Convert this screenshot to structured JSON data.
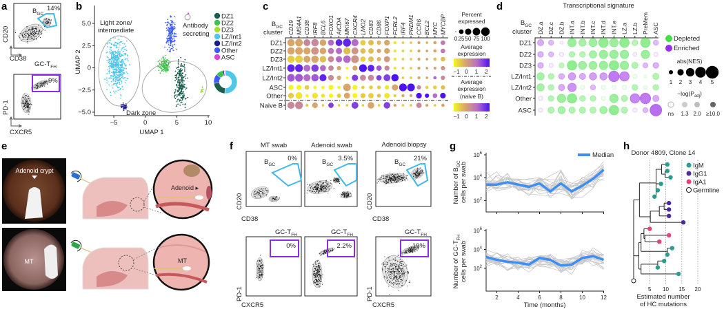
{
  "panels": {
    "a": "a",
    "b": "b",
    "c": "c",
    "d": "d",
    "e": "e",
    "f": "f",
    "g": "g",
    "h": "h"
  },
  "a": {
    "bgc_label": {
      "main": "B",
      "sub": "GC"
    },
    "bgc_pct": "14%",
    "tfh_label": {
      "main": "GC-T",
      "sub": "FH"
    },
    "tfh_pct": "9%",
    "x1": "CD38",
    "y1": "CD20",
    "x2": "CXCR5",
    "y2": "PD-1"
  },
  "colors": {
    "bgc_gate": "#3fb8ea",
    "tfh_gate": "#8b2be2",
    "median": "#3d8ef5",
    "depleted": "#3fe03f",
    "enriched": "#9a2de8",
    "IgM": "#2a9d8f",
    "IgG1": "#4b2a9a",
    "IgA1": "#e8407a"
  },
  "chart_data": [
    {
      "panel": "b",
      "type": "scatter",
      "xlabel": "UMAP 1",
      "ylabel": "UMAP 2",
      "xlim": [
        -7.5,
        10
      ],
      "ylim": [
        -5.5,
        7
      ],
      "xticks": [
        "−5",
        "0",
        "5",
        "10"
      ],
      "xtick_values": [
        -5,
        0,
        5,
        10
      ],
      "yticks": [
        "5.0",
        "2.5",
        "0",
        "−2.5",
        "−5.0"
      ],
      "ytick_values": [
        5,
        2.5,
        0,
        -2.5,
        -5
      ],
      "annotations": [
        "Light zone/",
        "intermediate",
        "Dark zone",
        "Antibody",
        "secreting"
      ],
      "legend": [
        {
          "name": "DZ1",
          "color": "#1c5e4b",
          "fraction": 0.22
        },
        {
          "name": "DZ2",
          "color": "#3ec24b",
          "fraction": 0.1
        },
        {
          "name": "DZ3",
          "color": "#a6e22b",
          "fraction": 0.01
        },
        {
          "name": "LZ/Int1",
          "color": "#4fc7e9",
          "fraction": 0.51
        },
        {
          "name": "LZ/Int2",
          "color": "#1b1b8e",
          "fraction": 0.02
        },
        {
          "name": "Other",
          "color": "#3b5bff",
          "fraction": 0.13
        },
        {
          "name": "ASC",
          "color": "#e040e0",
          "fraction": 0.01
        }
      ],
      "legend_position": "right"
    },
    {
      "panel": "c",
      "type": "heatmap",
      "subtype": "dotplot",
      "row_header": {
        "main": "B",
        "sub": "GC",
        "line2": "cluster"
      },
      "genes": [
        "CD19",
        "MS4A1",
        "CD38",
        "IRF8",
        "BCL6",
        "FOXO1",
        "AICDA",
        "MKI67",
        "CXCR4",
        "LMO2",
        "CD83",
        "CD86",
        "FOXP1",
        "FCRL2",
        "IRF4",
        "PRDM1",
        "CCR6",
        "BCL2",
        "MYC",
        "MYCBP"
      ],
      "rows": [
        {
          "name": "DZ1",
          "pct": [
            70,
            75,
            60,
            70,
            55,
            45,
            60,
            85,
            65,
            35,
            35,
            20,
            40,
            8,
            5,
            5,
            8,
            5,
            10,
            25
          ],
          "exp": [
            0,
            0,
            0.5,
            0.5,
            0,
            1,
            1.8,
            1.8,
            1,
            -0.5,
            -0.3,
            -0.2,
            0,
            -0.8,
            -0.5,
            -0.5,
            0,
            -0.3,
            0,
            0.7
          ]
        },
        {
          "name": "DZ2",
          "pct": [
            70,
            75,
            65,
            75,
            55,
            45,
            50,
            65,
            60,
            35,
            35,
            20,
            40,
            8,
            5,
            5,
            8,
            5,
            10,
            25
          ],
          "exp": [
            0,
            0,
            0,
            0.3,
            0,
            0.8,
            1,
            -0.3,
            0.3,
            -0.3,
            -0.3,
            0,
            0,
            -0.8,
            -0.5,
            -0.5,
            0,
            0,
            0,
            0.7
          ]
        },
        {
          "name": "DZ3",
          "pct": [
            70,
            75,
            60,
            70,
            55,
            45,
            50,
            75,
            80,
            35,
            35,
            20,
            45,
            8,
            5,
            5,
            8,
            5,
            10,
            25
          ],
          "exp": [
            -0.5,
            -0.5,
            0,
            0,
            -0.3,
            0.5,
            1,
            1,
            0.3,
            -0.5,
            -0.3,
            -0.2,
            0.2,
            -0.8,
            -0.5,
            -0.5,
            0,
            0,
            -0.3,
            -0.3
          ]
        },
        {
          "name": "LZ/Int1",
          "pct": [
            75,
            80,
            60,
            70,
            45,
            35,
            20,
            5,
            30,
            80,
            60,
            35,
            30,
            8,
            5,
            5,
            8,
            5,
            8,
            20
          ],
          "exp": [
            1.8,
            1.8,
            1,
            1.5,
            1,
            0.5,
            0,
            -1,
            0,
            2,
            1.8,
            1.2,
            0.5,
            -0.8,
            -0.5,
            -0.5,
            0,
            0,
            0,
            0.3
          ]
        },
        {
          "name": "LZ/Int2",
          "pct": [
            75,
            80,
            65,
            70,
            65,
            40,
            20,
            5,
            50,
            45,
            45,
            35,
            60,
            70,
            5,
            5,
            8,
            5,
            10,
            20
          ],
          "exp": [
            1.2,
            1.2,
            1,
            1.2,
            1.8,
            0.5,
            0,
            -1,
            1.5,
            0.5,
            0.5,
            1.5,
            1.5,
            2,
            -0.5,
            -0.5,
            0,
            0,
            1,
            0.5
          ]
        },
        {
          "name": "ASC",
          "pct": [
            30,
            30,
            25,
            10,
            10,
            30,
            10,
            75,
            30,
            10,
            15,
            15,
            20,
            50,
            80,
            80,
            20,
            10,
            15,
            20
          ],
          "exp": [
            -1,
            -1,
            -0.5,
            -1,
            -1,
            -1,
            -1,
            0,
            -1,
            -0.5,
            -0.5,
            -0.5,
            -0.8,
            0,
            2,
            2,
            0.5,
            -0.5,
            -0.5,
            -0.3
          ]
        },
        {
          "name": "Other",
          "pct": [
            40,
            60,
            10,
            40,
            15,
            20,
            20,
            45,
            30,
            30,
            35,
            15,
            35,
            8,
            8,
            8,
            40,
            20,
            25,
            40
          ],
          "exp": [
            -0.5,
            -0.8,
            -1,
            -0.8,
            -0.8,
            -1,
            -0.5,
            0,
            -1,
            -0.5,
            -0.5,
            -0.3,
            -0.8,
            -0.5,
            0,
            0,
            2,
            2,
            1,
            2
          ]
        },
        {
          "name": "Naive B",
          "pct": [
            65,
            80,
            8,
            40,
            5,
            35,
            5,
            5,
            60,
            5,
            55,
            5,
            55,
            8,
            5,
            5,
            35,
            8,
            5,
            10
          ],
          "exp": [
            0.5,
            0.5,
            -0.5,
            0,
            -0.5,
            1.5,
            -0.5,
            -0.5,
            1.5,
            -0.5,
            0,
            -0.5,
            1.5,
            0,
            -0.5,
            -0.5,
            0.5,
            0,
            -0.5,
            0
          ]
        }
      ],
      "legend": {
        "size_title": [
          "Percent",
          "expressed"
        ],
        "size_ticks": [
          "0",
          "25",
          "50",
          "75",
          "100"
        ],
        "size_values": [
          0,
          25,
          50,
          75,
          100
        ],
        "color_title": [
          "Average",
          "expression"
        ],
        "color_ticks": [
          "−1",
          "0",
          "1",
          "2"
        ],
        "color_title_naive": [
          "Average",
          "expression",
          "(naive B)"
        ],
        "colorscale": [
          "#f6f41f",
          "#d8a56b",
          "#b76bc9",
          "#4b12f3"
        ],
        "color_range": [
          -1,
          2
        ]
      }
    },
    {
      "panel": "d",
      "type": "heatmap",
      "subtype": "dotplot",
      "title": "Transcriptional signature",
      "row_header": {
        "main": "B",
        "sub": "GC",
        "line2": "cluster"
      },
      "columns": [
        "DZ.a",
        "DZ.c",
        "DZ.b",
        "INT.a",
        "INT.b",
        "INT.c",
        "INT.d",
        "INT.e",
        "LZ.a",
        "LZ.b",
        "PreMem",
        "ASC"
      ],
      "rows": [
        {
          "name": "DZ1",
          "nes": [
            2,
            1.5,
            0.5,
            -3,
            -2.5,
            -2.8,
            -3.5,
            -3,
            -3.5,
            -1.8,
            -3.5,
            1.5
          ]
        },
        {
          "name": "DZ2",
          "nes": [
            1.8,
            1.5,
            1,
            -1.8,
            -1.8,
            -2.5,
            -3,
            -3,
            -3,
            0.8,
            -3,
            1
          ]
        },
        {
          "name": "DZ3",
          "nes": [
            1.8,
            1,
            -1.5,
            -3.5,
            -2.8,
            -2.8,
            -3,
            -3.5,
            -3,
            -2,
            1.5,
            1.8
          ]
        },
        {
          "name": "LZ/Int1",
          "nes": [
            -2.5,
            -1.8,
            1.8,
            2.5,
            2,
            2.5,
            2.5,
            4,
            3.5,
            -1,
            -0.5,
            -2
          ]
        },
        {
          "name": "LZ/Int2",
          "nes": [
            -2.5,
            -1.8,
            2,
            3,
            -1,
            1.5,
            -1,
            -0.8,
            -1,
            -1.8,
            -0.8,
            -1.8
          ]
        },
        {
          "name": "Other",
          "nes": [
            1,
            -1.8,
            -3,
            -3.5,
            -1.8,
            -1.8,
            -1,
            -3,
            -2,
            3.5,
            4,
            2
          ]
        },
        {
          "name": "ASC",
          "nes": [
            1,
            -2,
            -2.5,
            -2,
            -2,
            -2,
            -2.5,
            -3.5,
            -2,
            1,
            1.5,
            4.5
          ]
        }
      ],
      "legend": {
        "depleted": "Depleted",
        "enriched": "Enriched",
        "size_title": "abs(NES)",
        "size_ticks": [
          "1",
          "2",
          "3",
          "4",
          "5"
        ],
        "size_values": [
          1,
          2,
          3,
          4,
          5
        ],
        "p_title": {
          "main": "−log(P",
          "sub": "adj",
          "end": ")"
        },
        "p_ticks": [
          "ns",
          "1.3",
          "2.0",
          "≥10.0"
        ]
      }
    },
    {
      "panel": "g",
      "type": "line",
      "xlabel": "Time (months)",
      "xlim": [
        1,
        12
      ],
      "xticks": [
        "2",
        "4",
        "6",
        "8",
        "10",
        "12"
      ],
      "xtick_values": [
        2,
        4,
        6,
        8,
        10,
        12
      ],
      "legend": "Median",
      "series": [
        {
          "name": "Median",
          "ylabel": {
            "line1": "Number of B",
            "sub": "GC",
            "line2": "cells per swab"
          },
          "y_log10": [
            3.4,
            3.4,
            3.6,
            3.4,
            3.2,
            3.5,
            2.8,
            3.5,
            2.8,
            3.3,
            3.9,
            4.7
          ],
          "ylim_log10": [
            1,
            6
          ],
          "yticks": [
            "6",
            "4",
            "2"
          ]
        },
        {
          "name": "Median",
          "ylabel": {
            "line1": "Number of GC-T",
            "sub": "FH",
            "line2": "cells per swab"
          },
          "y_log10": [
            3.2,
            2.9,
            2.7,
            2.6,
            2.4,
            3.1,
            2.9,
            2.3,
            2.4,
            3.1,
            3.3,
            2.9
          ],
          "ylim_log10": [
            -0.4,
            6
          ],
          "yticks": [
            "6",
            "4",
            "2"
          ]
        }
      ],
      "x": [
        1,
        2,
        3,
        4,
        5,
        6,
        7,
        8,
        9,
        10,
        11,
        12
      ]
    },
    {
      "panel": "h",
      "type": "scatter",
      "subtype": "phylogenetic-tree",
      "title": "Donor 4809, Clone 14",
      "xlabel": [
        "Estimated number",
        "of HC mutations"
      ],
      "xticks": [
        "5",
        "10",
        "15",
        "20"
      ],
      "xtick_values": [
        5,
        10,
        15,
        20
      ],
      "legend": [
        "IgM",
        "IgG1",
        "IgA1",
        "Germline"
      ],
      "tree": {
        "x": 0,
        "c": [
          {
            "x": 1.8,
            "c": [
              {
                "x": 7,
                "c": [
                  {
                    "x": 8.7,
                    "c": [
                      {
                        "leaf": "IgM",
                        "x": 10.5
                      },
                      {
                        "x": 9.8,
                        "c": [
                          {
                            "leaf": "IgM",
                            "x": 10.5
                          },
                          {
                            "leaf": "IgM",
                            "x": 11.5
                          }
                        ]
                      }
                    ]
                  },
                  {
                    "leaf": "IgM",
                    "x": 8.5
                  },
                  {
                    "leaf": "IgM",
                    "x": 7.5
                  },
                  {
                    "leaf": "IgM",
                    "x": 6.5
                  }
                ]
              },
              {
                "x": 5.2,
                "c": [
                  {
                    "x": 8,
                    "c": [
                      {
                        "x": 9.5,
                        "c": [
                          {
                            "leaf": "IgG1",
                            "x": 11
                          },
                          {
                            "leaf": "IgG1",
                            "x": 11
                          }
                        ]
                      },
                      {
                        "leaf": "IgG1",
                        "x": 11
                      }
                    ]
                  },
                  {
                    "leaf": "IgG1",
                    "x": 15.5
                  }
                ]
              }
            ]
          },
          {
            "x": 1.6,
            "c": [
              {
                "x": 2.3,
                "c": [
                  {
                    "x": 3.2,
                    "c": [
                      {
                        "leaf": "IgA1",
                        "x": 5
                      },
                      {
                        "x": 3.5,
                        "c": [
                          {
                            "leaf": "IgA1",
                            "x": 11
                          },
                          {
                            "leaf": "IgA1",
                            "x": 8
                          }
                        ]
                      }
                    ]
                  },
                  {
                    "x": 10.5,
                    "c": [
                      {
                        "leaf": "IgM",
                        "x": 12
                      },
                      {
                        "leaf": "IgM",
                        "x": 10.5
                      }
                    ]
                  }
                ]
              },
              {
                "x": 2.3,
                "c": [
                  {
                    "x": 7.5,
                    "c": [
                      {
                        "leaf": "IgM",
                        "x": 9.5
                      },
                      {
                        "leaf": "IgM",
                        "x": 7.5
                      }
                    ]
                  },
                  {
                    "leaf": "IgM",
                    "x": 14
                  }
                ]
              }
            ]
          }
        ]
      }
    }
  ],
  "e": {
    "photo1_label": "Adenoid crypt",
    "photo2_label": "MT",
    "zoom1_label": "Adenoid ▸",
    "zoom2_label": "MT"
  },
  "f": {
    "columns": [
      "MT swab",
      "Adenoid swab",
      "Adenoid biopsy"
    ],
    "bgc_label": {
      "main": "B",
      "sub": "GC"
    },
    "bgc_pcts": [
      "0%",
      "3.5%",
      "21%"
    ],
    "tfh_label": {
      "main": "GC-T",
      "sub": "FH"
    },
    "tfh_pcts": [
      "0%",
      "2.2%",
      "19%"
    ],
    "x1": "CD38",
    "y1": "CD20",
    "x2": "CXCR5",
    "y2": "PD-1"
  }
}
